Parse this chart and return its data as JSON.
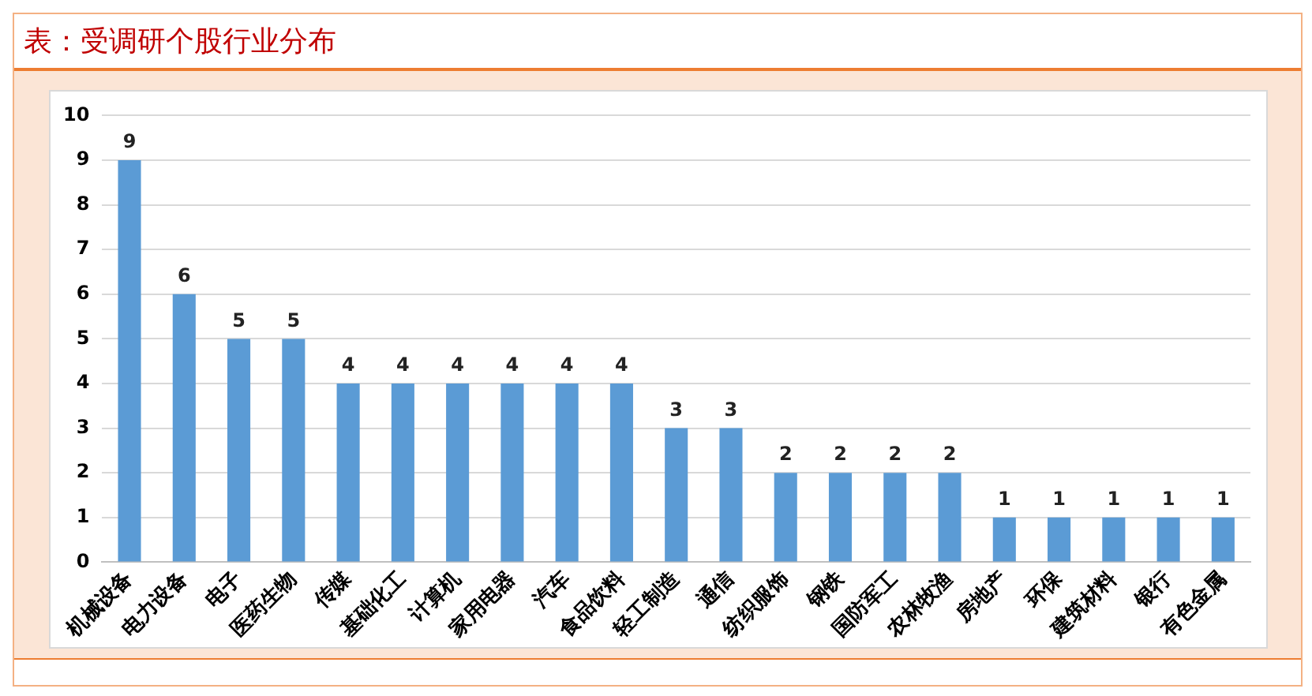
{
  "chart_data": {
    "type": "bar",
    "title": "表：受调研个股行业分布",
    "categories": [
      "机械设备",
      "电力设备",
      "电子",
      "医药生物",
      "传媒",
      "基础化工",
      "计算机",
      "家用电器",
      "汽车",
      "食品饮料",
      "轻工制造",
      "通信",
      "纺织服饰",
      "钢铁",
      "国防军工",
      "农林牧渔",
      "房地产",
      "环保",
      "建筑材料",
      "银行",
      "有色金属"
    ],
    "values": [
      9,
      6,
      5,
      5,
      4,
      4,
      4,
      4,
      4,
      4,
      3,
      3,
      2,
      2,
      2,
      2,
      1,
      1,
      1,
      1,
      1
    ],
    "color": "#5b9bd5",
    "ylim": [
      0,
      10
    ],
    "yticks": [
      0,
      1,
      2,
      3,
      4,
      5,
      6,
      7,
      8,
      9,
      10
    ],
    "grid": "y",
    "data_labels": true
  }
}
